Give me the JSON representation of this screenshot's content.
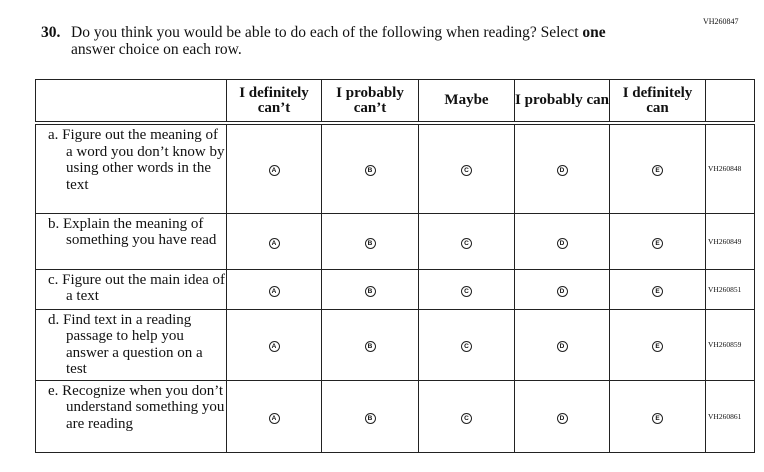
{
  "top_code": "VH260847",
  "question": {
    "number": "30.",
    "text_part1": "Do you think you would be able to do each of the following when reading? Select ",
    "emphasis": "one",
    "text_part2": "answer choice on each row."
  },
  "columns": [
    "I definitely can’t",
    "I probably can’t",
    "Maybe",
    "I probably can",
    "I definitely can"
  ],
  "bubbles": [
    "A",
    "B",
    "C",
    "D",
    "E"
  ],
  "rows": [
    {
      "label": "a. Figure out the meaning of a word you don’t know by using other words in the text",
      "code": "VH260848"
    },
    {
      "label": "b. Explain the meaning of something you have read",
      "code": "VH260849"
    },
    {
      "label": "c. Figure out the main idea of a text",
      "code": "VH260851"
    },
    {
      "label": "d. Find text in a reading passage to help you answer a question on a test",
      "code": "VH260859"
    },
    {
      "label": "e. Recognize when you don’t understand something you are reading",
      "code": "VH260861"
    }
  ]
}
